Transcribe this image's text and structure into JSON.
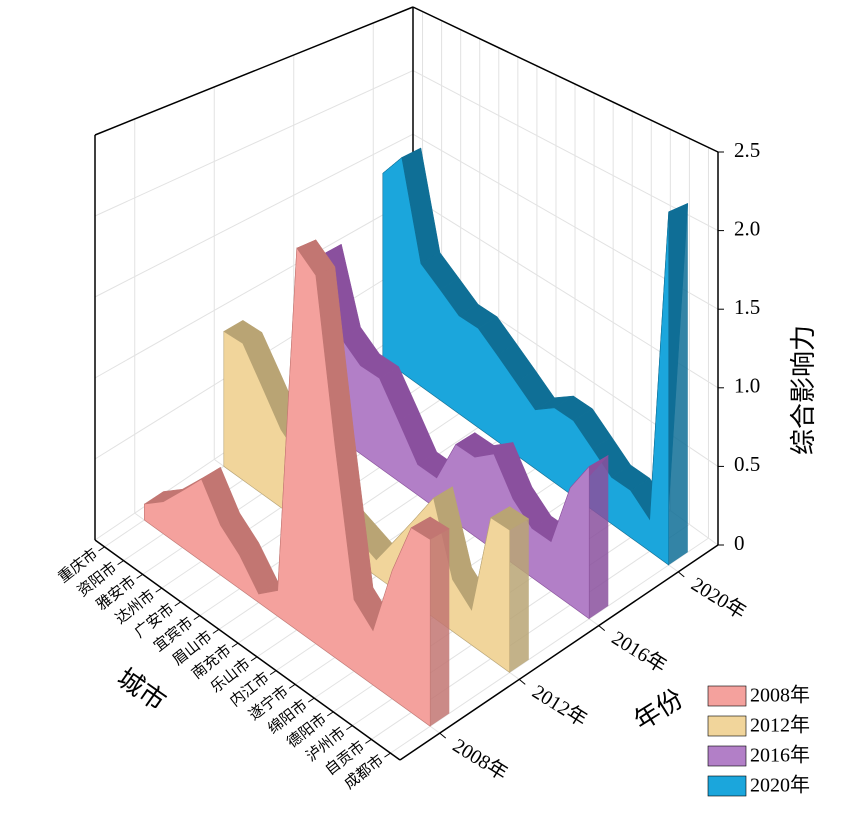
{
  "chart_data": {
    "type": "ribbon3d",
    "x_label": "城市",
    "y_label": "年份",
    "z_label": "综合影响力",
    "categories": [
      "重庆市",
      "资阳市",
      "雅安市",
      "达州市",
      "广安市",
      "宜宾市",
      "眉山市",
      "南充市",
      "乐山市",
      "内江市",
      "遂宁市",
      "绵阳市",
      "德阳市",
      "泸州市",
      "自贡市",
      "成都市"
    ],
    "series": [
      {
        "name": "2008年",
        "color": "#f4a19d",
        "top_color": "#c27672",
        "values": [
          0.1,
          0.2,
          0.35,
          0.5,
          0.3,
          0.2,
          0.05,
          0.15,
          2.2,
          2.1,
          1.2,
          0.4,
          0.3,
          0.7,
          1.0,
          1.0
        ]
      },
      {
        "name": "2012年",
        "color": "#f1d59b",
        "top_color": "#b9a474",
        "values": [
          0.9,
          0.9,
          0.7,
          0.5,
          0.4,
          0.3,
          0.2,
          0.15,
          0.1,
          0.3,
          0.5,
          0.7,
          0.3,
          0.2,
          0.8,
          0.8
        ]
      },
      {
        "name": "2016年",
        "color": "#b27fc7",
        "top_color": "#8a509e",
        "values": [
          1.0,
          1.2,
          0.7,
          0.6,
          0.6,
          0.4,
          0.2,
          0.2,
          0.5,
          0.5,
          0.6,
          0.4,
          0.3,
          0.3,
          0.7,
          0.9
        ]
      },
      {
        "name": "2020年",
        "color": "#1ba6dc",
        "top_color": "#0f6f96",
        "values": [
          1.4,
          1.6,
          0.9,
          0.8,
          0.7,
          0.7,
          0.6,
          0.5,
          0.4,
          0.5,
          0.5,
          0.4,
          0.3,
          0.3,
          0.2,
          2.2
        ]
      }
    ],
    "zlim": [
      0,
      2.5
    ],
    "zticks": [
      0,
      0.5,
      {
        "value": 1,
        "label": "1.0"
      },
      1.5,
      {
        "value": 2,
        "label": "2.0"
      },
      2.5
    ],
    "grid": true
  }
}
